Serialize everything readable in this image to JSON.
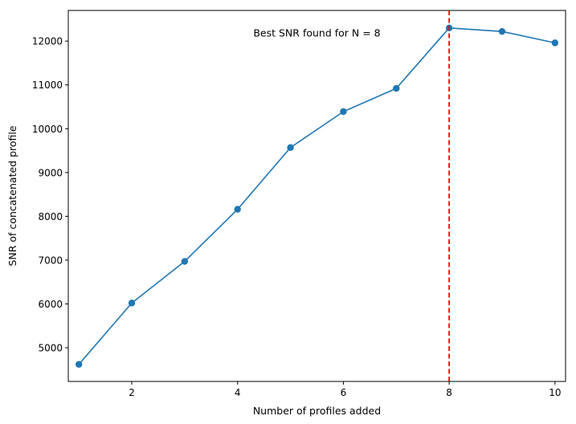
{
  "chart_data": {
    "type": "line",
    "title": "",
    "xlabel": "Number of profiles added",
    "ylabel": "SNR of concatenated profile",
    "xlim": [
      0.8,
      10.2
    ],
    "ylim": [
      4230,
      12700
    ],
    "x_ticks": [
      2,
      4,
      6,
      8,
      10
    ],
    "y_ticks": [
      5000,
      6000,
      7000,
      8000,
      9000,
      10000,
      11000,
      12000
    ],
    "grid": false,
    "series": [
      {
        "x": [
          1,
          2,
          3,
          4,
          5,
          6,
          7,
          8,
          9,
          10
        ],
        "values": [
          4620,
          6020,
          6970,
          8160,
          9570,
          10390,
          10920,
          12300,
          12220,
          11960
        ],
        "color": "#1f77b4",
        "marker": "circle"
      }
    ],
    "vline": {
      "x": 8,
      "color": "#ff0000",
      "style": "dashed"
    },
    "annotation": {
      "text": "Best SNR found for N = 8",
      "x": 5.5,
      "y": 12200
    }
  }
}
